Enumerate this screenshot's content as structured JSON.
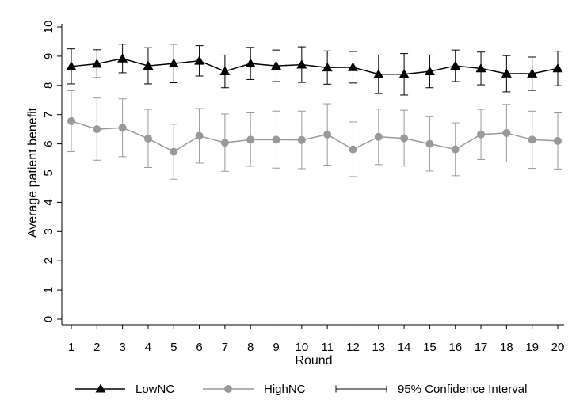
{
  "chart_data": {
    "type": "line",
    "title": "",
    "xlabel": "Round",
    "ylabel": "Average patient benefit",
    "x": [
      1,
      2,
      3,
      4,
      5,
      6,
      7,
      8,
      9,
      10,
      11,
      12,
      13,
      14,
      15,
      16,
      17,
      18,
      19,
      20
    ],
    "xlim": [
      1,
      20
    ],
    "ylim": [
      0,
      10
    ],
    "yticks": [
      0,
      1,
      2,
      3,
      4,
      5,
      6,
      7,
      8,
      9,
      10
    ],
    "grid": false,
    "legend_position": "bottom",
    "series": [
      {
        "name": "LowNC",
        "marker": "triangle",
        "color": "#000000",
        "values": [
          8.65,
          8.74,
          8.92,
          8.67,
          8.75,
          8.84,
          8.48,
          8.75,
          8.67,
          8.71,
          8.61,
          8.62,
          8.38,
          8.38,
          8.48,
          8.67,
          8.58,
          8.4,
          8.4,
          8.58
        ],
        "ci_low": [
          8.05,
          8.26,
          8.43,
          8.05,
          8.09,
          8.32,
          7.92,
          8.2,
          8.13,
          8.1,
          8.04,
          8.08,
          7.72,
          7.67,
          7.92,
          8.13,
          8.02,
          7.78,
          7.83,
          7.99
        ],
        "ci_high": [
          9.25,
          9.22,
          9.41,
          9.29,
          9.41,
          9.36,
          9.04,
          9.3,
          9.21,
          9.32,
          9.18,
          9.16,
          9.04,
          9.09,
          9.04,
          9.21,
          9.14,
          9.02,
          8.97,
          9.17
        ]
      },
      {
        "name": "HighNC",
        "marker": "circle",
        "color": "#999999",
        "values": [
          6.78,
          6.5,
          6.55,
          6.18,
          5.73,
          6.27,
          6.04,
          6.14,
          6.14,
          6.13,
          6.32,
          5.81,
          6.24,
          6.19,
          6.0,
          5.81,
          6.32,
          6.37,
          6.14,
          6.1
        ],
        "ci_low": [
          5.73,
          5.44,
          5.56,
          5.19,
          4.79,
          5.34,
          5.06,
          5.23,
          5.17,
          5.15,
          5.27,
          4.88,
          5.29,
          5.24,
          5.07,
          4.91,
          5.46,
          5.38,
          5.16,
          5.14
        ],
        "ci_high": [
          7.82,
          7.57,
          7.54,
          7.18,
          6.67,
          7.21,
          7.02,
          7.06,
          7.12,
          7.12,
          7.37,
          6.75,
          7.19,
          7.15,
          6.93,
          6.72,
          7.18,
          7.35,
          7.12,
          7.06
        ]
      }
    ],
    "ci_legend_label": "95% Confidence Interval"
  }
}
